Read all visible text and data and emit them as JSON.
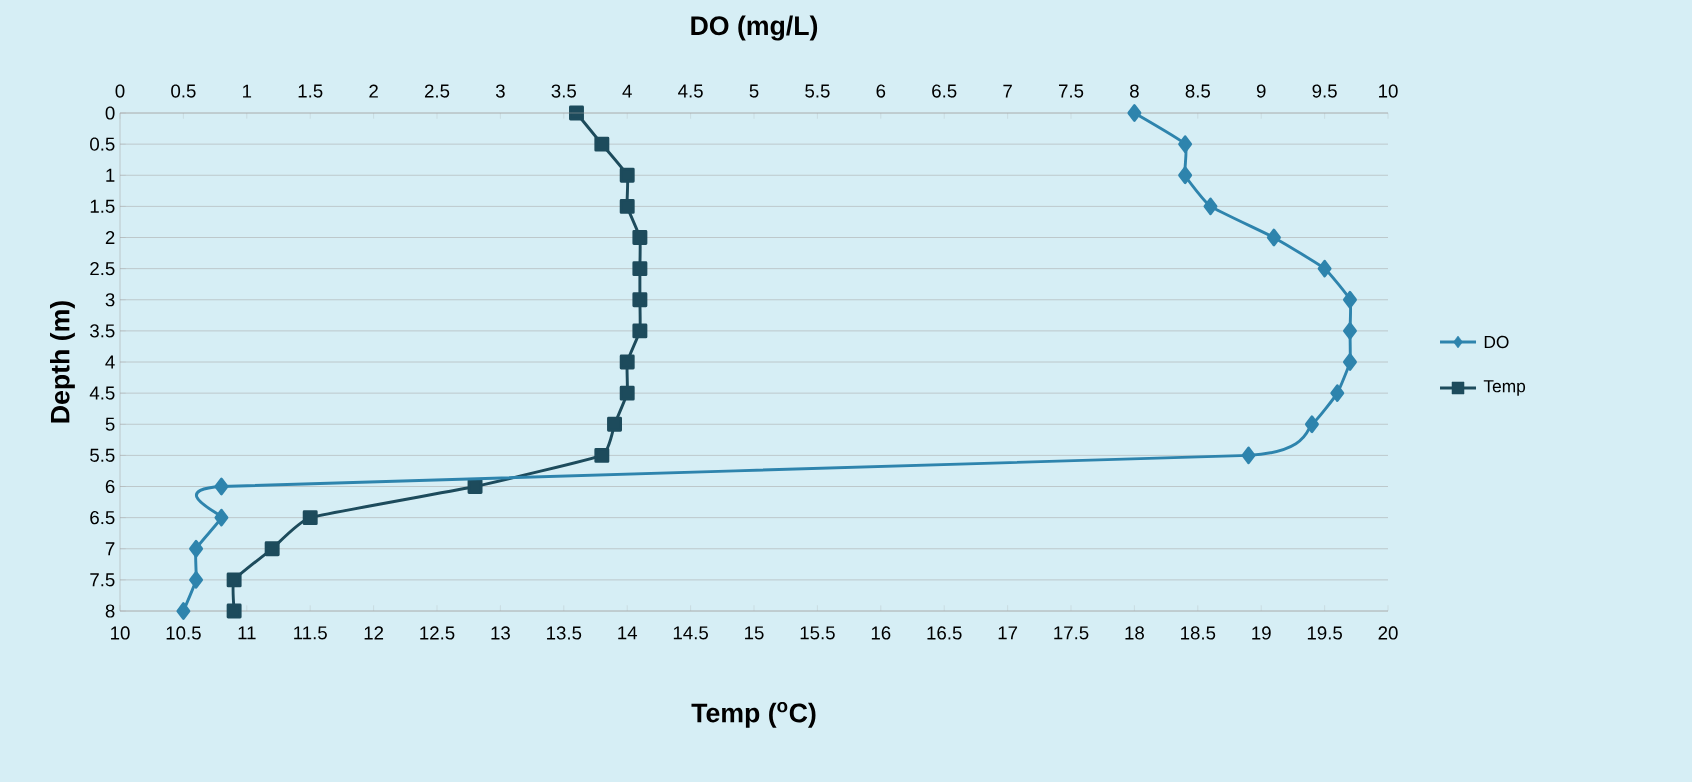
{
  "chart_data": {
    "type": "line",
    "xlabel": "Temp ($^{o}$C)",
    "x2label": "DO (mg/L)",
    "ylabel": "Depth (m)",
    "series": [
      {
        "name": "DO",
        "color": "#2e84ad",
        "axis": "x2",
        "marker": "diamond",
        "x": [
          8.0,
          8.4,
          8.4,
          8.6,
          9.1,
          9.5,
          9.7,
          9.7,
          9.7,
          9.6,
          9.4,
          8.9,
          0.8,
          0.8,
          0.6,
          0.6,
          0.5
        ],
        "values": [
          0,
          0.5,
          1,
          1.5,
          2,
          2.5,
          3,
          3.5,
          4,
          4.5,
          5,
          5.5,
          6,
          6.5,
          7,
          7.5,
          8
        ]
      },
      {
        "name": "Temp",
        "color": "#1d4b5c",
        "marker": "square",
        "x": [
          13.6,
          13.8,
          14.0,
          14.0,
          14.1,
          14.1,
          14.1,
          14.1,
          14.0,
          14.0,
          13.9,
          13.8,
          12.8,
          11.5,
          11.2,
          10.9,
          10.9
        ],
        "values": [
          0,
          0.5,
          1,
          1.5,
          2,
          2.5,
          3,
          3.5,
          4,
          4.5,
          5,
          5.5,
          6,
          6.5,
          7,
          7.5,
          8
        ]
      }
    ],
    "xlim": [
      10,
      20
    ],
    "xticks": [
      10,
      10.5,
      11,
      11.5,
      12,
      12.5,
      13,
      13.5,
      14,
      14.5,
      15,
      15.5,
      16,
      16.5,
      17,
      17.5,
      18,
      18.5,
      19,
      19.5,
      20
    ],
    "x2lim": [
      0,
      10
    ],
    "x2ticks": [
      0,
      0.5,
      1,
      1.5,
      2,
      2.5,
      3,
      3.5,
      4,
      4.5,
      5,
      5.5,
      6,
      6.5,
      7,
      7.5,
      8,
      8.5,
      9,
      9.5,
      10
    ],
    "ylim": [
      8,
      0
    ],
    "yticks": [
      0,
      0.5,
      1,
      1.5,
      2,
      2.5,
      3,
      3.5,
      4,
      4.5,
      5,
      5.5,
      6,
      6.5,
      7,
      7.5,
      8
    ],
    "grid": "y",
    "legend": "right",
    "line_style": "solid"
  }
}
